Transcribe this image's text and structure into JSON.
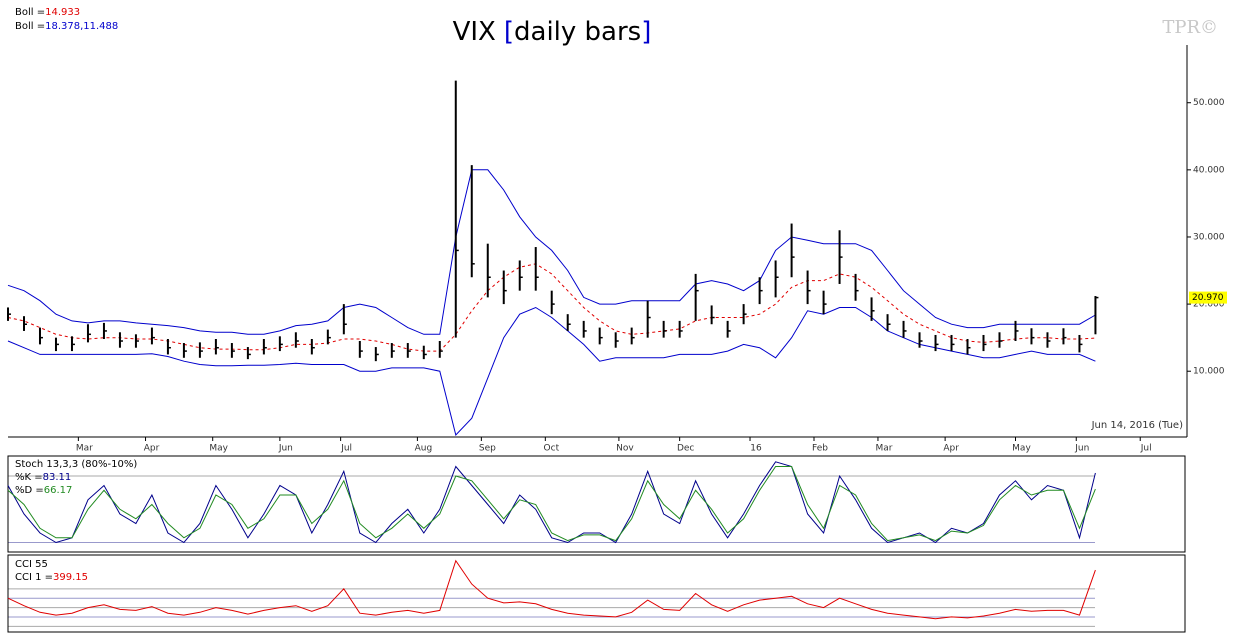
{
  "chart_data": [
    {
      "type": "hlc",
      "title": "VIX",
      "title_brackets": [
        "[",
        "]"
      ],
      "subtitle": "daily bars",
      "watermark": "TPR©",
      "date_label": "Jun 14, 2016 (Tue)",
      "legend": [
        {
          "name": "Boll =",
          "value_label": "14.933",
          "color": "#e00000"
        },
        {
          "name": "Boll =",
          "value_label": "18.378,11.488",
          "color": "#0000cc"
        }
      ],
      "x": [
        0,
        5,
        10,
        15,
        20,
        25,
        30,
        35,
        40,
        45,
        50,
        55,
        60,
        65,
        70,
        75,
        80,
        85,
        90,
        95,
        100,
        105,
        110,
        115,
        120,
        125,
        130,
        135,
        140,
        145,
        150,
        155,
        160,
        165,
        170,
        175,
        180,
        185,
        190,
        195,
        200,
        205,
        210,
        215,
        220,
        225,
        230,
        235,
        240,
        245,
        250,
        255,
        260,
        265,
        270,
        275,
        280,
        285,
        290,
        295,
        300,
        305,
        310,
        315,
        320,
        325,
        330,
        335,
        340
      ],
      "xlim": [
        0,
        368
      ],
      "xticks": [
        {
          "value": 22,
          "label": "Mar"
        },
        {
          "value": 43,
          "label": "Apr"
        },
        {
          "value": 64,
          "label": "May"
        },
        {
          "value": 85,
          "label": "Jun"
        },
        {
          "value": 104,
          "label": "Jul"
        },
        {
          "value": 128,
          "label": "Aug"
        },
        {
          "value": 148,
          "label": "Sep"
        },
        {
          "value": 168,
          "label": "Oct"
        },
        {
          "value": 191,
          "label": "Nov"
        },
        {
          "value": 210,
          "label": "Dec"
        },
        {
          "value": 232,
          "label": "16"
        },
        {
          "value": 252,
          "label": "Feb"
        },
        {
          "value": 272,
          "label": "Mar"
        },
        {
          "value": 293,
          "label": "Apr"
        },
        {
          "value": 315,
          "label": "May"
        },
        {
          "value": 334,
          "label": "Jun"
        },
        {
          "value": 354,
          "label": "Jul"
        }
      ],
      "ylim": [
        0.2,
        58.6
      ],
      "yticks": [
        {
          "value": 10,
          "label": "10.000"
        },
        {
          "value": 20,
          "label": "20.000"
        },
        {
          "value": 30,
          "label": "30.000"
        },
        {
          "value": 40,
          "label": "40.000"
        },
        {
          "value": 50,
          "label": "50.000"
        }
      ],
      "color": "#000000",
      "high": [
        19.5,
        18.2,
        16.5,
        15,
        15.2,
        17,
        17.2,
        15.8,
        15.5,
        16.5,
        14.8,
        14.2,
        14.3,
        14.8,
        14.2,
        13.6,
        14.8,
        15.2,
        15.8,
        14.8,
        16.2,
        20,
        14.5,
        13.6,
        14.2,
        14.2,
        13.8,
        14.5,
        53.3,
        40.7,
        29,
        25,
        26.5,
        28.5,
        22,
        18.5,
        17.5,
        16.5,
        15.8,
        16.5,
        20.5,
        17.5,
        17.5,
        24.5,
        19.8,
        17.5,
        20,
        24,
        26.5,
        32,
        25,
        22,
        31,
        24.5,
        21,
        18.5,
        17.5,
        15.8,
        15.4,
        15.4,
        14.8,
        15.4,
        15.8,
        17.5,
        16.4,
        15.8,
        16.4,
        15.4,
        21.2
      ],
      "low": [
        17.5,
        16,
        14,
        13,
        13,
        14.3,
        14.8,
        13.5,
        13.5,
        14,
        12.5,
        12,
        12,
        12.5,
        12,
        11.8,
        12.5,
        13,
        13.5,
        12.5,
        14,
        15.5,
        12,
        11.5,
        12,
        12,
        11.8,
        12,
        15,
        24,
        21,
        20,
        22,
        22,
        18.5,
        16,
        15,
        14,
        13.5,
        14,
        15,
        15,
        15,
        17.5,
        17,
        15,
        17,
        20,
        21,
        24,
        20,
        18.5,
        23,
        20.5,
        17.5,
        16,
        15,
        13.5,
        13,
        13,
        12.5,
        13,
        13.5,
        14.5,
        14,
        13.5,
        14,
        12.8,
        15.5
      ],
      "close": [
        18.5,
        17,
        15,
        14,
        14,
        15.5,
        16,
        14.5,
        14.5,
        15,
        13.5,
        13,
        13,
        13.5,
        13,
        12.5,
        13.5,
        14,
        14.5,
        13.5,
        15,
        17,
        13,
        12.5,
        13,
        13,
        12.5,
        13,
        28,
        26,
        24,
        22,
        24,
        24,
        20,
        17,
        16,
        15,
        14.5,
        15,
        18,
        16,
        16,
        22,
        18,
        16,
        18.5,
        22,
        24,
        27,
        22,
        20,
        27,
        22,
        19,
        17,
        16,
        14.5,
        14,
        14,
        13.5,
        14,
        14.5,
        16,
        15,
        14.5,
        15,
        14,
        20.97
      ],
      "last_label": {
        "value": 20.97,
        "label": "20.970"
      },
      "bands": [
        {
          "color": "#0000cc",
          "dashed": false,
          "values": [
            22.8,
            22,
            20.5,
            18.5,
            17.5,
            17.2,
            17.5,
            17.5,
            17.2,
            17,
            16.8,
            16.5,
            16,
            15.8,
            15.8,
            15.5,
            15.5,
            16,
            16.8,
            17,
            17.5,
            19.5,
            20,
            19.5,
            18,
            16.5,
            15.5,
            15.5,
            30,
            40,
            40,
            37,
            33,
            30,
            28,
            25,
            21,
            20,
            20,
            20.5,
            20.5,
            20.5,
            20.5,
            23,
            23.5,
            23,
            22,
            23.5,
            28,
            30,
            29.5,
            29,
            29,
            29,
            28,
            25,
            22,
            20,
            18,
            17,
            16.5,
            16.5,
            17,
            17,
            17,
            17,
            17,
            17,
            18.378
          ]
        },
        {
          "color": "#e00000",
          "dashed": true,
          "values": [
            18,
            17.5,
            16.5,
            15.5,
            15,
            14.8,
            15,
            15,
            14.8,
            14.8,
            14.5,
            14,
            13.5,
            13.3,
            13.3,
            13.2,
            13.2,
            13.5,
            14,
            14,
            14.2,
            14.8,
            14.8,
            14.5,
            14,
            13.3,
            13,
            13,
            15.5,
            19,
            22,
            24,
            25.5,
            26,
            24.5,
            22,
            19.5,
            17.5,
            16,
            15.5,
            15.7,
            16,
            16.3,
            17.5,
            18,
            18,
            18,
            18.5,
            20,
            22.5,
            23.5,
            23.5,
            24.5,
            24,
            22.5,
            20.5,
            18.5,
            17,
            16,
            15,
            14.5,
            14.3,
            14.5,
            14.8,
            15,
            15,
            14.8,
            14.8,
            14.933
          ]
        },
        {
          "color": "#0000cc",
          "dashed": false,
          "values": [
            14.5,
            13.5,
            12.5,
            12.5,
            12.5,
            12.5,
            12.5,
            12.5,
            12.5,
            12.6,
            12.2,
            11.5,
            11,
            10.8,
            10.8,
            10.9,
            10.9,
            11,
            11.2,
            11,
            11,
            11,
            10,
            10,
            10.5,
            10.5,
            10.5,
            10,
            0.5,
            3,
            9,
            15,
            18.5,
            19.5,
            18,
            16,
            14,
            11.5,
            12,
            12,
            12,
            12,
            12.5,
            12.5,
            12.5,
            13,
            14,
            13.5,
            12,
            15,
            19,
            18.5,
            19.5,
            19.5,
            18,
            16,
            15,
            14,
            13.5,
            13,
            12.5,
            12,
            12,
            12.5,
            13,
            12.5,
            12.5,
            12.5,
            11.488
          ]
        }
      ]
    },
    {
      "type": "line",
      "title": "Stoch 13,3,3 (80%-10%)",
      "ylim": [
        0,
        100
      ],
      "hlines": [
        80,
        10
      ],
      "series": [
        {
          "name": "%K =",
          "color": "#00008b",
          "values": [
            70,
            40,
            20,
            10,
            15,
            55,
            70,
            40,
            30,
            60,
            20,
            10,
            30,
            70,
            45,
            15,
            40,
            70,
            60,
            20,
            50,
            85,
            20,
            10,
            30,
            45,
            20,
            45,
            90,
            70,
            50,
            30,
            60,
            45,
            15,
            10,
            20,
            20,
            10,
            40,
            85,
            40,
            30,
            75,
            40,
            15,
            40,
            70,
            95,
            90,
            40,
            20,
            80,
            55,
            25,
            10,
            15,
            20,
            10,
            25,
            20,
            30,
            60,
            75,
            55,
            70,
            65,
            15,
            83.11
          ]
        },
        {
          "name": "%D =",
          "color": "#228b22",
          "values": [
            65,
            50,
            25,
            15,
            15,
            45,
            65,
            45,
            35,
            50,
            30,
            15,
            25,
            60,
            50,
            25,
            35,
            60,
            60,
            30,
            45,
            75,
            30,
            15,
            25,
            40,
            25,
            40,
            80,
            75,
            55,
            35,
            55,
            50,
            20,
            12,
            18,
            18,
            12,
            35,
            75,
            50,
            35,
            65,
            45,
            20,
            35,
            65,
            90,
            90,
            50,
            25,
            70,
            60,
            30,
            12,
            15,
            18,
            12,
            22,
            20,
            28,
            55,
            70,
            60,
            65,
            65,
            25,
            66.17
          ]
        }
      ]
    },
    {
      "type": "line",
      "title": "CCI 55",
      "ylim": [
        -250,
        550
      ],
      "hlines": [
        -200,
        -100,
        0,
        100,
        200
      ],
      "series": [
        {
          "name": "CCI 1 =",
          "color": "#e00000",
          "values": [
            100,
            20,
            -50,
            -80,
            -60,
            0,
            30,
            -20,
            -30,
            10,
            -60,
            -80,
            -50,
            0,
            -30,
            -70,
            -30,
            0,
            20,
            -40,
            20,
            200,
            -60,
            -80,
            -50,
            -30,
            -60,
            -30,
            500,
            250,
            100,
            50,
            60,
            40,
            -20,
            -60,
            -80,
            -90,
            -100,
            -50,
            80,
            -20,
            -30,
            150,
            30,
            -40,
            30,
            80,
            100,
            120,
            40,
            0,
            100,
            40,
            -20,
            -60,
            -80,
            -100,
            -120,
            -100,
            -110,
            -90,
            -60,
            -20,
            -40,
            -30,
            -30,
            -80,
            399.15
          ]
        }
      ]
    }
  ]
}
